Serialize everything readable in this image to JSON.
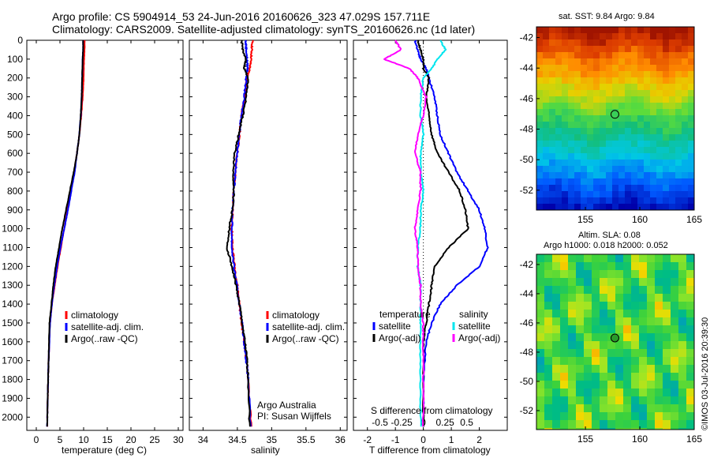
{
  "header": {
    "line1": "Argo profile: CS 5904914_53 24-Jun-2016 20160626_323 47.029S 157.711E",
    "line2": "Climatology: CARS2009. Satellite-adjusted climatology: synTS_20160626.nc (1d later)"
  },
  "panel_labels": {
    "argo_australia": "Argo Australia",
    "pi": "PI: Susan Wijffels",
    "imos_stamp": "©IMOS 03-Jul-2016 20:39:30"
  },
  "colors": {
    "climatology": "#ff0000",
    "satellite": "#0000ff",
    "argo": "#000000",
    "satellite_salinity": "#00e5ee",
    "argo_salinity_adj": "#ff00ff"
  },
  "chart_data": [
    {
      "type": "line",
      "id": "temperature",
      "xlabel": "temperature (deg C)",
      "ylabel": "",
      "xlim": [
        -2,
        31
      ],
      "ylim": [
        2070,
        0
      ],
      "x_ticks": [
        0,
        5,
        10,
        15,
        20,
        25,
        30
      ],
      "y_ticks": [
        0,
        100,
        200,
        300,
        400,
        500,
        600,
        700,
        800,
        900,
        1000,
        1100,
        1200,
        1300,
        1400,
        1500,
        1600,
        1700,
        1800,
        1900,
        2000
      ],
      "legend": [
        "climatology",
        "satellite-adj. clim.",
        "Argo(..raw -QC)"
      ],
      "legend_position": "lower-center",
      "series": [
        {
          "name": "climatology",
          "color": "#ff0000",
          "x": [
            10.2,
            10.2,
            10.1,
            10.0,
            9.8,
            9.5,
            9.1,
            8.6,
            8.0,
            7.3,
            6.6,
            5.9,
            5.2,
            4.5,
            3.9,
            3.3,
            2.9,
            2.6,
            2.5,
            2.4,
            2.3
          ],
          "y": [
            0,
            50,
            100,
            200,
            300,
            400,
            500,
            600,
            700,
            800,
            900,
            1000,
            1100,
            1200,
            1300,
            1400,
            1500,
            1700,
            1800,
            1900,
            2050
          ]
        },
        {
          "name": "satellite-adj. clim.",
          "color": "#0000ff",
          "x": [
            9.9,
            9.9,
            9.8,
            9.7,
            9.6,
            9.4,
            9.1,
            8.6,
            8.1,
            7.4,
            6.7,
            5.9,
            5.1,
            4.4,
            3.8,
            3.3,
            2.9,
            2.6,
            2.5,
            2.4,
            2.3
          ],
          "y": [
            0,
            50,
            100,
            200,
            300,
            400,
            500,
            600,
            700,
            800,
            900,
            1000,
            1100,
            1200,
            1300,
            1400,
            1500,
            1700,
            1800,
            1900,
            2050
          ]
        },
        {
          "name": "Argo(..raw -QC)",
          "color": "#000000",
          "x": [
            9.9,
            9.9,
            9.8,
            9.7,
            9.6,
            9.4,
            9.1,
            8.6,
            7.9,
            7.1,
            6.3,
            5.5,
            4.8,
            4.1,
            3.6,
            3.2,
            2.8,
            2.6,
            2.5,
            2.4,
            2.3
          ],
          "y": [
            0,
            50,
            100,
            200,
            300,
            400,
            500,
            600,
            700,
            800,
            900,
            1000,
            1100,
            1200,
            1300,
            1400,
            1500,
            1700,
            1800,
            1900,
            2050
          ]
        }
      ]
    },
    {
      "type": "line",
      "id": "salinity",
      "xlabel": "salinity",
      "ylabel": "",
      "xlim": [
        33.8,
        36.1
      ],
      "ylim": [
        2070,
        0
      ],
      "x_ticks": [
        34,
        34.5,
        35,
        35.5,
        36
      ],
      "legend": [
        "climatology",
        "satellite-adj. clim.",
        "Argo(..raw -QC)"
      ],
      "legend_position": "lower-right",
      "series": [
        {
          "name": "climatology",
          "color": "#ff0000",
          "x": [
            34.72,
            34.71,
            34.7,
            34.68,
            34.64,
            34.61,
            34.56,
            34.53,
            34.5,
            34.47,
            34.45,
            34.43,
            34.42,
            34.43,
            34.46,
            34.5,
            34.53,
            34.56,
            34.6,
            34.63,
            34.66,
            34.7
          ],
          "y": [
            0,
            50,
            100,
            150,
            200,
            300,
            400,
            500,
            600,
            700,
            800,
            900,
            1000,
            1100,
            1200,
            1300,
            1400,
            1500,
            1600,
            1700,
            1800,
            2050
          ]
        },
        {
          "name": "satellite-adj. clim.",
          "color": "#0000ff",
          "x": [
            34.62,
            34.63,
            34.64,
            34.65,
            34.63,
            34.6,
            34.56,
            34.53,
            34.5,
            34.47,
            34.45,
            34.43,
            34.42,
            34.42,
            34.45,
            34.49,
            34.53,
            34.57,
            34.6,
            34.63,
            34.66,
            34.69
          ],
          "y": [
            0,
            50,
            100,
            150,
            200,
            300,
            400,
            500,
            600,
            700,
            800,
            900,
            1000,
            1100,
            1200,
            1300,
            1400,
            1500,
            1600,
            1700,
            1800,
            2050
          ]
        },
        {
          "name": "Argo(..raw -QC)",
          "color": "#000000",
          "x": [
            34.56,
            34.58,
            34.62,
            34.6,
            34.66,
            34.63,
            34.58,
            34.52,
            34.46,
            34.44,
            34.45,
            34.43,
            34.38,
            34.35,
            34.42,
            34.48,
            34.53,
            34.57,
            34.61,
            34.64,
            34.66,
            34.68
          ],
          "y": [
            0,
            50,
            100,
            150,
            200,
            300,
            400,
            500,
            600,
            700,
            800,
            900,
            1000,
            1100,
            1200,
            1300,
            1400,
            1500,
            1600,
            1700,
            1800,
            2050
          ]
        }
      ]
    },
    {
      "type": "line",
      "id": "difference",
      "xlabel": "T difference from climatology",
      "xlabel2": "S difference from climatology",
      "xlim": [
        -2.5,
        3.0
      ],
      "ylim": [
        2070,
        0
      ],
      "x_ticks": [
        -2,
        -1,
        0,
        1,
        2
      ],
      "x_ticks_s": [
        -0.5,
        -0.25,
        0,
        0.25,
        0.5
      ],
      "legend_t_title": "temperature",
      "legend_s_title": "salinity",
      "legend_t": [
        "satellite",
        "Argo(-adj)"
      ],
      "legend_s": [
        "satellite",
        "Argo(-adj)"
      ],
      "series": [
        {
          "name": "satellite (T)",
          "color": "#0000ff",
          "x": [
            -0.3,
            -0.2,
            -0.1,
            0.1,
            0.2,
            0.4,
            0.5,
            0.6,
            0.9,
            1.2,
            1.6,
            2.0,
            2.2,
            2.3,
            2.0,
            1.2,
            0.6,
            0.3,
            0.1,
            0.0,
            0.0
          ],
          "y": [
            0,
            50,
            100,
            150,
            200,
            300,
            400,
            500,
            600,
            700,
            800,
            900,
            1000,
            1100,
            1200,
            1300,
            1400,
            1500,
            1600,
            1800,
            2050
          ]
        },
        {
          "name": "Argo(-adj) (T)",
          "color": "#000000",
          "x": [
            -0.2,
            -0.1,
            0.0,
            0.0,
            0.2,
            0.1,
            0.2,
            0.3,
            0.5,
            0.9,
            1.3,
            1.5,
            1.6,
            0.9,
            0.4,
            0.3,
            0.2,
            0.1,
            0.0,
            0.0,
            0.0
          ],
          "y": [
            0,
            50,
            100,
            150,
            200,
            300,
            400,
            500,
            600,
            700,
            800,
            900,
            1000,
            1100,
            1200,
            1300,
            1400,
            1500,
            1600,
            1800,
            2050
          ]
        },
        {
          "name": "satellite (S)",
          "color": "#00e5ee",
          "x": [
            0.6,
            0.8,
            0.5,
            0.3,
            0.0,
            -0.1,
            -0.1,
            0.0,
            -0.1,
            -0.1,
            0.0,
            -0.1,
            -0.1,
            -0.2,
            -0.2,
            -0.1,
            -0.1,
            -0.1,
            -0.1,
            -0.1,
            -0.1
          ],
          "y": [
            0,
            50,
            100,
            150,
            200,
            300,
            400,
            500,
            600,
            700,
            800,
            900,
            1000,
            1100,
            1200,
            1300,
            1400,
            1500,
            1600,
            1800,
            2050
          ]
        },
        {
          "name": "Argo(-adj) (S)",
          "color": "#ff00ff",
          "x": [
            -1.0,
            -0.8,
            -1.4,
            -0.5,
            -0.2,
            0.1,
            0.0,
            -0.2,
            -0.3,
            -0.1,
            -0.1,
            -0.2,
            -0.3,
            -0.2,
            -0.2,
            -0.1,
            -0.1,
            0.0,
            0.0,
            0.0,
            0.0
          ],
          "y": [
            0,
            50,
            100,
            150,
            200,
            300,
            400,
            500,
            600,
            700,
            800,
            900,
            1000,
            1100,
            1200,
            1300,
            1400,
            1500,
            1600,
            1800,
            2050
          ]
        }
      ]
    },
    {
      "type": "heatmap",
      "id": "sst_map",
      "title": "sat. SST: 9.84  Argo: 9.84",
      "xlim": [
        150.5,
        165
      ],
      "ylim": [
        -53.3,
        -41.3
      ],
      "x_ticks": [
        155,
        160,
        165
      ],
      "y_ticks": [
        -42,
        -44,
        -46,
        -48,
        -50,
        -52
      ],
      "marker": {
        "lon": 157.711,
        "lat": -47.029
      }
    },
    {
      "type": "heatmap",
      "id": "sla_map",
      "title": "Altim. SLA: 0.08",
      "subtitle": "Argo h1000: 0.018 h2000: 0.052",
      "xlim": [
        150.5,
        165
      ],
      "ylim": [
        -53.3,
        -41.3
      ],
      "x_ticks": [
        155,
        160,
        165
      ],
      "y_ticks": [
        -42,
        -44,
        -46,
        -48,
        -50,
        -52
      ],
      "marker": {
        "lon": 157.711,
        "lat": -47.029
      }
    }
  ]
}
